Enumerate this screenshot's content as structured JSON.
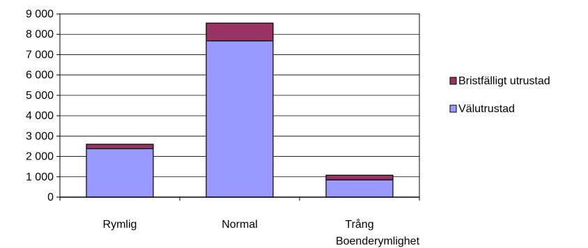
{
  "chart_data": {
    "type": "bar",
    "stacked": true,
    "categories": [
      "Rymlig",
      "Normal",
      "Trång"
    ],
    "series": [
      {
        "name": "Välutrustad",
        "values": [
          2380,
          7680,
          850
        ],
        "color": "#9999ff"
      },
      {
        "name": "Bristfälligt utrustad",
        "values": [
          220,
          870,
          230
        ],
        "color": "#993366"
      }
    ],
    "xlabel": "Boenderymlighet",
    "ylabel": "",
    "ylim": [
      0,
      9000
    ],
    "yticks": [
      0,
      1000,
      2000,
      3000,
      4000,
      5000,
      6000,
      7000,
      8000,
      9000
    ],
    "ytick_labels": [
      "0",
      "1 000",
      "2 000",
      "3 000",
      "4 000",
      "5 000",
      "6 000",
      "7 000",
      "8 000",
      "9 000"
    ],
    "grid": true,
    "legend_position": "right"
  }
}
